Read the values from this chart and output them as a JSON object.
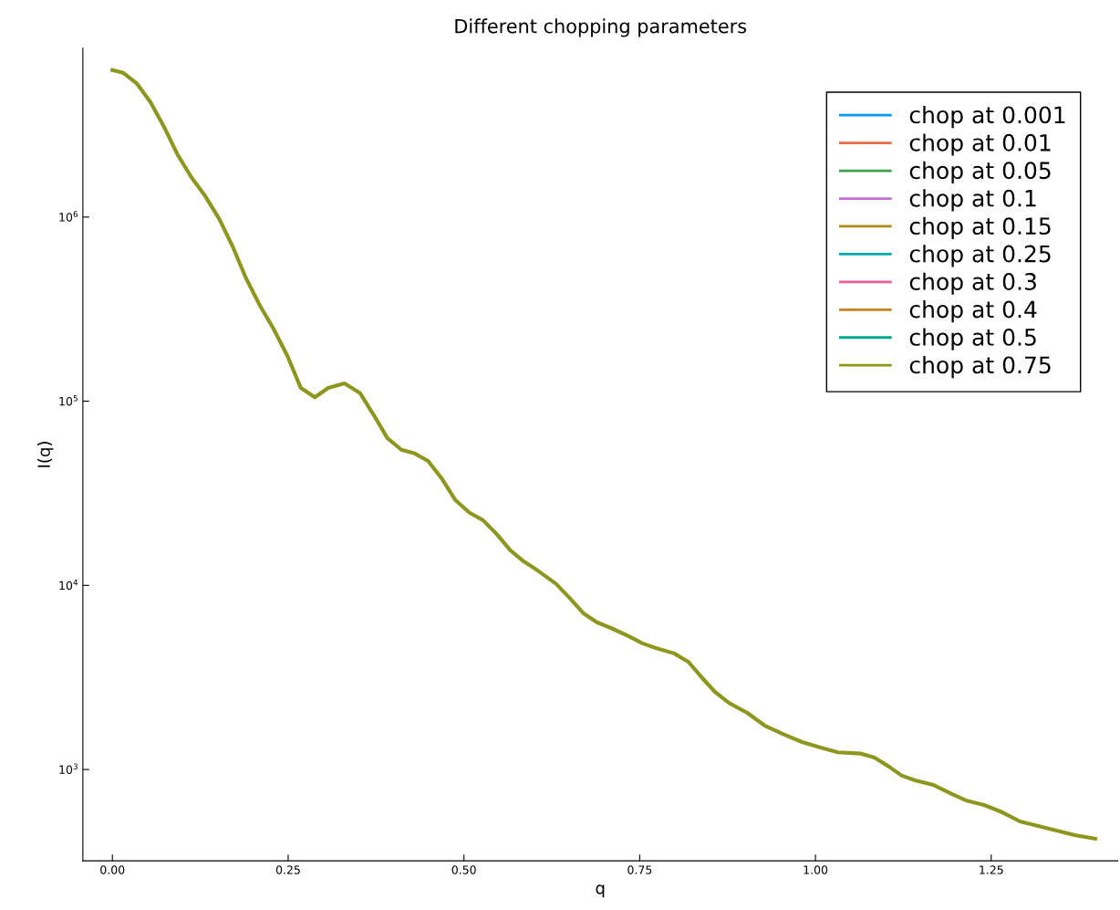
{
  "chart_data": {
    "type": "line",
    "title": "Different chopping parameters",
    "xlabel": "q",
    "ylabel": "I(q)",
    "x": [
      0,
      0.0155,
      0.035,
      0.054,
      0.074,
      0.093,
      0.113,
      0.132,
      0.152,
      0.171,
      0.19,
      0.21,
      0.229,
      0.249,
      0.268,
      0.288,
      0.307,
      0.33,
      0.352,
      0.372,
      0.391,
      0.411,
      0.43,
      0.449,
      0.469,
      0.488,
      0.508,
      0.527,
      0.546,
      0.566,
      0.585,
      0.604,
      0.631,
      0.65,
      0.67,
      0.689,
      0.709,
      0.734,
      0.754,
      0.773,
      0.799,
      0.819,
      0.838,
      0.857,
      0.877,
      0.903,
      0.928,
      0.955,
      0.981,
      1.006,
      1.032,
      1.065,
      1.084,
      1.104,
      1.123,
      1.142,
      1.168,
      1.194,
      1.214,
      1.24,
      1.266,
      1.291,
      1.317,
      1.343,
      1.369,
      1.398
    ],
    "series": [
      {
        "name": "chop at 0.001",
        "color": "#009af9",
        "values": [
          null,
          null,
          null,
          null,
          null,
          null,
          null,
          null,
          null,
          null,
          null,
          null,
          null,
          null,
          null,
          null,
          null,
          null,
          null,
          null,
          null,
          null,
          null,
          null,
          null,
          null,
          null,
          null,
          null,
          null,
          null,
          null,
          null,
          null,
          null,
          null,
          null,
          null,
          null,
          null,
          null,
          null,
          null,
          null,
          null,
          null,
          null,
          null,
          null,
          null,
          null,
          null,
          null,
          null,
          null,
          null,
          null,
          null,
          null,
          null,
          null,
          null,
          null,
          null,
          null,
          null
        ]
      },
      {
        "name": "chop at 0.01",
        "color": "#e26f46",
        "values": [
          null,
          null,
          null,
          null,
          null,
          null,
          null,
          null,
          null,
          null,
          null,
          null,
          null,
          null,
          null,
          null,
          null,
          null,
          null,
          null,
          null,
          null,
          null,
          null,
          null,
          null,
          null,
          null,
          null,
          null,
          null,
          null,
          null,
          null,
          null,
          null,
          null,
          null,
          null,
          null,
          null,
          null,
          null,
          null,
          null,
          null,
          null,
          null,
          null,
          null,
          null,
          null,
          null,
          null,
          null,
          null,
          null,
          null,
          null,
          null,
          null,
          null,
          null,
          null,
          null,
          null
        ]
      },
      {
        "name": "chop at 0.05",
        "color": "#3da44d",
        "values": [
          null,
          null,
          null,
          null,
          null,
          null,
          null,
          null,
          null,
          null,
          null,
          null,
          null,
          null,
          null,
          null,
          null,
          null,
          null,
          null,
          null,
          null,
          null,
          null,
          null,
          null,
          null,
          null,
          null,
          null,
          null,
          null,
          null,
          null,
          null,
          null,
          null,
          null,
          null,
          null,
          null,
          null,
          null,
          null,
          null,
          null,
          null,
          null,
          null,
          null,
          null,
          null,
          null,
          null,
          null,
          null,
          null,
          null,
          null,
          null,
          null,
          null,
          null,
          null,
          null,
          null
        ]
      },
      {
        "name": "chop at 0.1",
        "color": "#c271d2",
        "values": [
          null,
          null,
          null,
          null,
          null,
          null,
          null,
          null,
          null,
          null,
          null,
          null,
          null,
          null,
          null,
          null,
          null,
          null,
          null,
          null,
          null,
          null,
          null,
          null,
          null,
          null,
          null,
          null,
          null,
          null,
          null,
          null,
          null,
          null,
          null,
          null,
          null,
          null,
          null,
          null,
          null,
          null,
          null,
          null,
          null,
          null,
          null,
          null,
          null,
          null,
          null,
          null,
          null,
          null,
          null,
          null,
          null,
          null,
          null,
          null,
          null,
          null,
          null,
          null,
          null,
          null
        ]
      },
      {
        "name": "chop at 0.15",
        "color": "#ac8e18",
        "values": [
          null,
          null,
          null,
          null,
          null,
          null,
          null,
          null,
          null,
          null,
          null,
          null,
          null,
          null,
          null,
          null,
          null,
          null,
          null,
          null,
          null,
          null,
          null,
          null,
          null,
          null,
          null,
          null,
          null,
          null,
          null,
          null,
          null,
          null,
          null,
          null,
          null,
          null,
          null,
          null,
          null,
          null,
          null,
          null,
          null,
          null,
          null,
          null,
          null,
          null,
          null,
          null,
          null,
          null,
          null,
          null,
          null,
          null,
          null,
          null,
          null,
          null,
          null,
          null,
          null,
          null
        ]
      },
      {
        "name": "chop at 0.25",
        "color": "#00a9ad",
        "values": [
          null,
          null,
          null,
          null,
          null,
          null,
          null,
          null,
          null,
          null,
          null,
          null,
          null,
          null,
          null,
          null,
          null,
          null,
          null,
          null,
          null,
          null,
          null,
          null,
          null,
          null,
          null,
          null,
          null,
          null,
          null,
          null,
          null,
          null,
          null,
          null,
          null,
          null,
          null,
          null,
          null,
          null,
          null,
          null,
          null,
          null,
          null,
          null,
          null,
          null,
          null,
          null,
          null,
          null,
          null,
          null,
          null,
          null,
          null,
          null,
          null,
          null,
          null,
          null,
          null,
          null
        ]
      },
      {
        "name": "chop at 0.3",
        "color": "#ed5e93",
        "values": [
          null,
          null,
          null,
          null,
          null,
          null,
          null,
          null,
          null,
          null,
          null,
          null,
          null,
          null,
          null,
          null,
          null,
          null,
          null,
          null,
          null,
          null,
          null,
          null,
          null,
          null,
          null,
          null,
          null,
          null,
          null,
          null,
          null,
          null,
          null,
          null,
          null,
          null,
          null,
          null,
          null,
          null,
          null,
          null,
          null,
          null,
          null,
          null,
          null,
          null,
          null,
          null,
          null,
          null,
          null,
          null,
          null,
          null,
          null,
          null,
          null,
          null,
          null,
          null,
          null,
          null
        ]
      },
      {
        "name": "chop at 0.4",
        "color": "#c68225",
        "values": [
          null,
          null,
          null,
          null,
          null,
          null,
          null,
          null,
          null,
          null,
          null,
          null,
          null,
          null,
          null,
          null,
          null,
          null,
          null,
          null,
          null,
          null,
          null,
          null,
          null,
          null,
          null,
          null,
          null,
          null,
          null,
          null,
          null,
          null,
          null,
          null,
          null,
          null,
          null,
          null,
          null,
          null,
          null,
          null,
          null,
          null,
          null,
          null,
          null,
          null,
          null,
          null,
          null,
          null,
          null,
          null,
          null,
          null,
          null,
          null,
          null,
          null,
          null,
          null,
          null,
          null
        ]
      },
      {
        "name": "chop at 0.5",
        "color": "#00a98d",
        "values": [
          null,
          null,
          null,
          null,
          null,
          null,
          null,
          null,
          null,
          null,
          null,
          null,
          null,
          null,
          null,
          null,
          null,
          null,
          null,
          null,
          null,
          null,
          null,
          null,
          null,
          null,
          null,
          null,
          null,
          null,
          null,
          null,
          null,
          null,
          null,
          null,
          null,
          null,
          null,
          null,
          null,
          null,
          null,
          null,
          null,
          null,
          null,
          null,
          null,
          null,
          null,
          null,
          null,
          null,
          null,
          null,
          null,
          null,
          null,
          null,
          null,
          null,
          null,
          null,
          null,
          null
        ]
      },
      {
        "name": "chop at 0.75",
        "color": "#8e971d",
        "values": [
          6280000,
          6070000,
          5300000,
          4220000,
          3060000,
          2170000,
          1630000,
          1300000,
          977000,
          693000,
          466000,
          330000,
          248000,
          176000,
          118000,
          105000,
          118000,
          125000,
          111000,
          83800,
          63100,
          54500,
          52000,
          47400,
          37800,
          29000,
          24800,
          22600,
          19100,
          15500,
          13500,
          12100,
          10200,
          8570,
          7050,
          6300,
          5870,
          5300,
          4840,
          4570,
          4270,
          3850,
          3170,
          2640,
          2300,
          2030,
          1730,
          1550,
          1410,
          1320,
          1240,
          1220,
          1160,
          1040,
          925,
          873,
          824,
          736,
          679,
          641,
          585,
          522,
          493,
          466,
          440,
          421
        ]
      }
    ],
    "log": "y",
    "xlim": [
      -0.042,
      1.43
    ],
    "ylim": [
      319,
      8260000
    ],
    "xticks": [
      {
        "value": 0,
        "label": "0.00"
      },
      {
        "value": 0.25,
        "label": "0.25"
      },
      {
        "value": 0.5,
        "label": "0.50"
      },
      {
        "value": 0.75,
        "label": "0.75"
      },
      {
        "value": 1,
        "label": "1.00"
      },
      {
        "value": 1.25,
        "label": "1.25"
      }
    ],
    "yticks": [
      {
        "value": 1000,
        "label": "10$^{3}$"
      },
      {
        "value": 10000,
        "label": "10$^{4}$"
      },
      {
        "value": 100000,
        "label": "10$^{5}$"
      },
      {
        "value": 1000000,
        "label": "10$^{6}$"
      }
    ],
    "grid": false,
    "legend": "top right",
    "line_style": "solid",
    "marker": "none"
  }
}
